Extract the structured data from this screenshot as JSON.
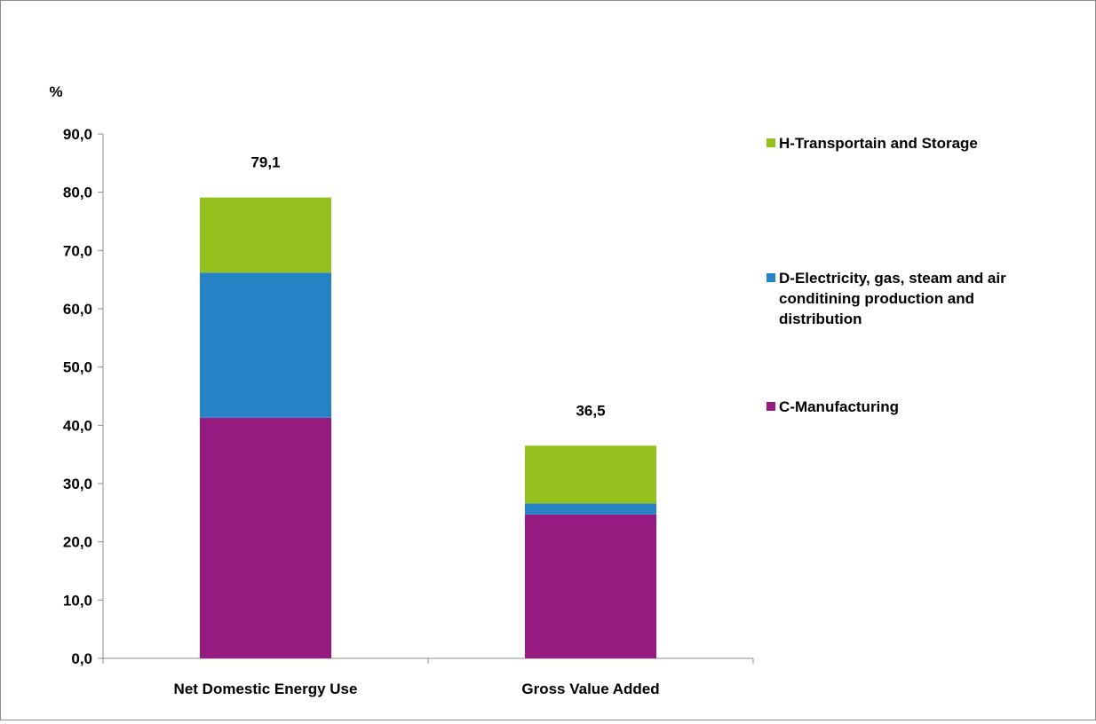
{
  "chart_data": {
    "type": "bar",
    "stacked": true,
    "unit_label": "%",
    "categories": [
      "Net Domestic Energy Use",
      "Gross Value Added"
    ],
    "series": [
      {
        "name": "C-Manufacturing",
        "color": "#951b81",
        "values": [
          41.3,
          24.7
        ]
      },
      {
        "name": "D-Electricity, gas, steam and air conditining production and distribution",
        "color": "#2683c6",
        "values": [
          24.9,
          1.9
        ]
      },
      {
        "name": "H-Transportain and Storage",
        "color": "#95c11f",
        "values": [
          12.9,
          9.9
        ]
      }
    ],
    "totals": [
      79.1,
      36.5
    ],
    "total_labels": [
      "79,1",
      "36,5"
    ],
    "ylim": [
      0,
      90
    ],
    "yticks": [
      0,
      10,
      20,
      30,
      40,
      50,
      60,
      70,
      80,
      90
    ],
    "ytick_labels": [
      "0,0",
      "10,0",
      "20,0",
      "30,0",
      "40,0",
      "50,0",
      "60,0",
      "70,0",
      "80,0",
      "90,0"
    ],
    "legend": {
      "position": "right",
      "order": [
        "H-Transportain and Storage",
        "D-Electricity, gas, steam and air conditining production and distribution",
        "C-Manufacturing"
      ],
      "lines": [
        [
          "H-Transportain and Storage"
        ],
        [
          "D-Electricity, gas, steam and air",
          "conditining production and",
          "distribution"
        ],
        [
          "C-Manufacturing"
        ]
      ]
    },
    "grid": false
  }
}
